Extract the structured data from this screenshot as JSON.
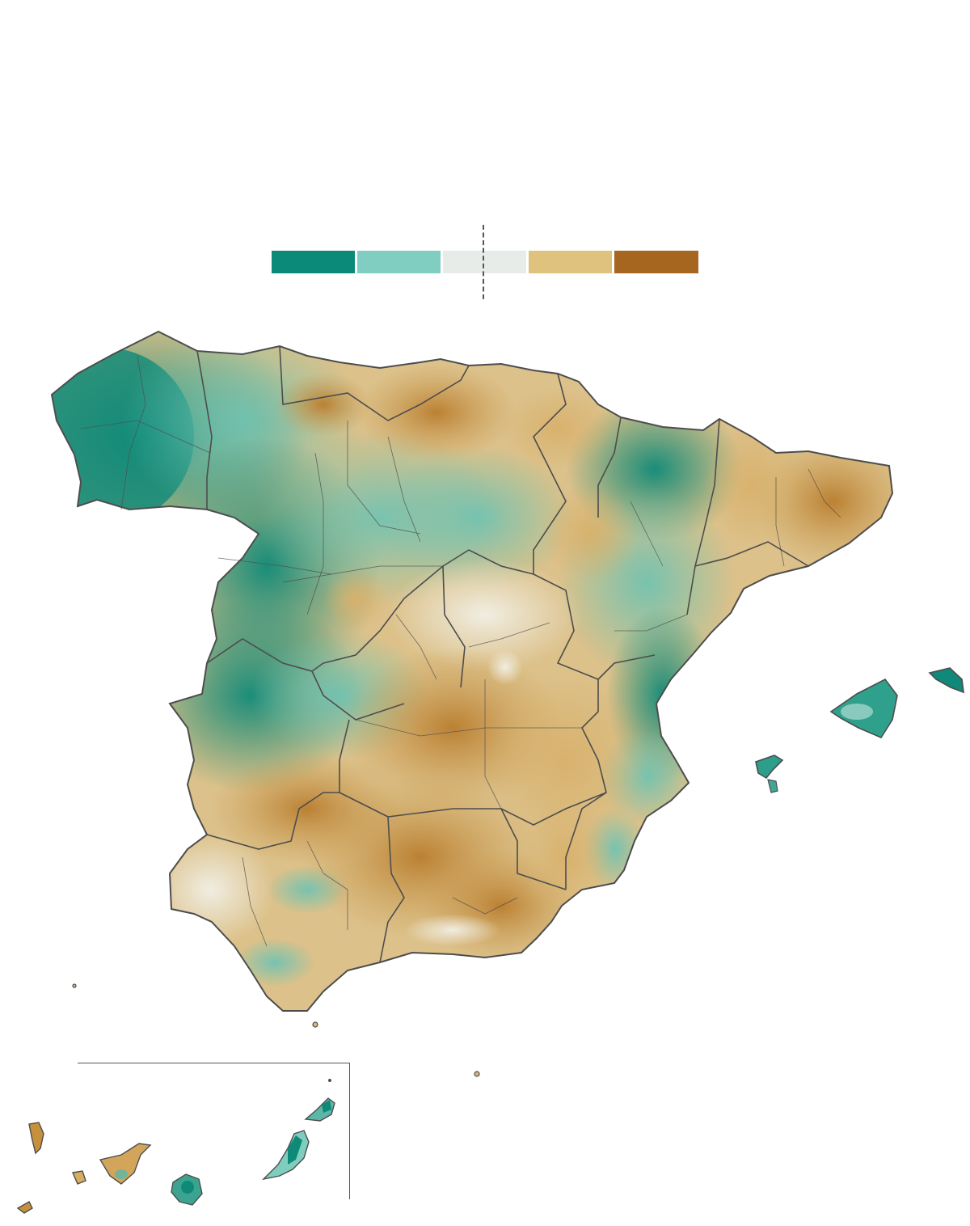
{
  "legend": {
    "colors": [
      "#0b8a7a",
      "#80cdc1",
      "#e8ece8",
      "#dfc27d",
      "#a6661f"
    ],
    "midpoint_divider": "dashed"
  },
  "map": {
    "region": "Spain",
    "colors": {
      "wet_dark": "#0f8a78",
      "wet_light": "#7fcdbf",
      "neutral": "#e9efe9",
      "dry_light": "#dfc27d",
      "dry_dark": "#b97d2e",
      "border": "#4d4d4d"
    }
  }
}
